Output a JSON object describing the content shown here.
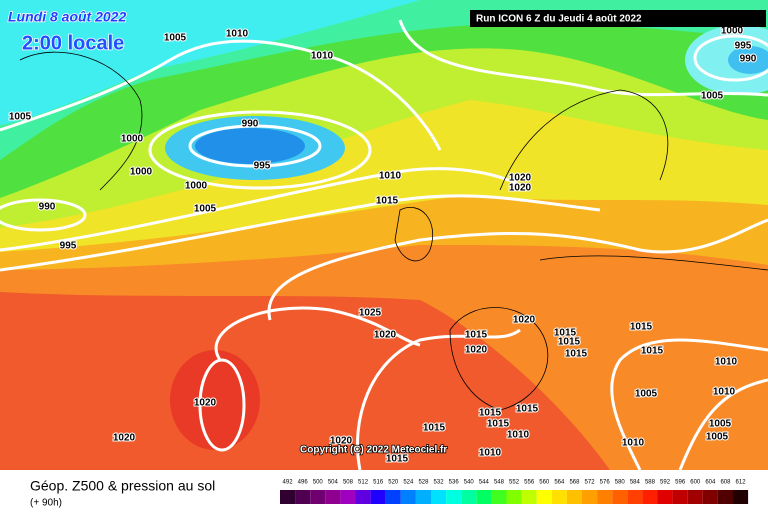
{
  "header": {
    "date": "Lundi 8 août 2022",
    "time": "2:00 locale",
    "run": "Run ICON 6 Z du Jeudi 4 août 2022"
  },
  "isobar_labels": [
    "1005",
    "1010",
    "1010",
    "1005",
    "990",
    "1000",
    "995",
    "1000",
    "1000",
    "1005",
    "990",
    "995",
    "1010",
    "1015",
    "1020",
    "1020",
    "1000",
    "995",
    "990",
    "1005",
    "1025",
    "1020",
    "1015",
    "1020",
    "1020",
    "1015",
    "1015",
    "1015",
    "1015",
    "1015",
    "1010",
    "1005",
    "1010",
    "1020",
    "1020",
    "1020",
    "1015",
    "1015",
    "1015",
    "1015",
    "1010",
    "1015",
    "1010",
    "1010",
    "1005",
    "1005"
  ],
  "copyright": "Copyright (C) 2022 Meteociel.fr",
  "footer": {
    "title": "Géop. Z500 & pression au sol",
    "lead": "(+ 90h)"
  },
  "scale": {
    "labels": [
      492,
      496,
      500,
      504,
      508,
      512,
      516,
      520,
      524,
      528,
      532,
      536,
      540,
      544,
      548,
      552,
      556,
      560,
      564,
      568,
      572,
      576,
      580,
      584,
      588,
      592,
      596,
      600,
      604,
      608,
      612
    ],
    "colors": [
      "#300030",
      "#500050",
      "#700070",
      "#900090",
      "#a000c0",
      "#6000e0",
      "#2000ff",
      "#0040ff",
      "#0080ff",
      "#00b0ff",
      "#00e0ff",
      "#00ffe0",
      "#00ffa0",
      "#00ff60",
      "#40ff20",
      "#80ff00",
      "#c0ff00",
      "#ffff00",
      "#ffe000",
      "#ffc000",
      "#ffa000",
      "#ff8000",
      "#ff6000",
      "#ff4000",
      "#ff2000",
      "#e00000",
      "#c00000",
      "#a00000",
      "#800000",
      "#500000",
      "#200000"
    ]
  }
}
